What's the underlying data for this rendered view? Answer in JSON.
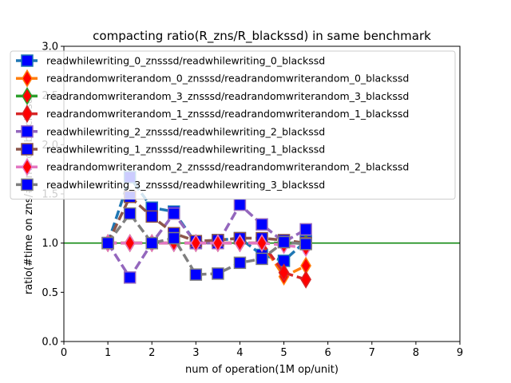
{
  "chart_data": {
    "type": "line",
    "title": "compacting ratio(R_zns/R_blackssd) in same benchmark",
    "xlabel": "num of operation(1M op/unit)",
    "ylabel": "ratio(#time on zns/#time on blackssd)",
    "xlim": [
      0,
      9
    ],
    "ylim": [
      0,
      3.0
    ],
    "xticks": [
      "0",
      "1",
      "2",
      "3",
      "4",
      "5",
      "6",
      "7",
      "8",
      "9"
    ],
    "yticks": [
      "0.0",
      "0.5",
      "1.0",
      "1.5",
      "2.0",
      "2.5",
      "3.0"
    ],
    "grid": false,
    "legend_position": "top-left",
    "reference_line": {
      "y": 1.0,
      "color": "#008000"
    },
    "series": [
      {
        "name": "readwhilewriting_0_znsssd/readwhilewriting_0_blackssd",
        "color": "#1f77b4",
        "marker": "square",
        "x": [
          1,
          1.5,
          2,
          2.5,
          3,
          3.5,
          4,
          4.5,
          5,
          5.5
        ],
        "y": [
          1.0,
          1.67,
          1.36,
          1.32,
          1.0,
          1.03,
          1.05,
          0.88,
          0.82,
          1.02
        ]
      },
      {
        "name": "readrandomwriterandom_0_znsssd/readrandomwriterandom_0_blackssd",
        "color": "#ff7f0e",
        "marker": "diamond",
        "x": [
          1,
          1.5,
          2,
          2.5,
          3,
          3.5,
          4,
          4.5,
          5,
          5.5
        ],
        "y": [
          1.0,
          1.0,
          1.0,
          1.0,
          1.0,
          1.0,
          1.0,
          1.0,
          0.66,
          0.77
        ]
      },
      {
        "name": "readrandomwriterandom_3_znsssd/readrandomwriterandom_3_blackssd",
        "color": "#2ca02c",
        "marker": "diamond",
        "x": [
          1,
          1.5,
          2,
          2.5,
          3,
          3.5,
          4,
          4.5,
          5,
          5.5
        ],
        "y": [
          1.0,
          1.0,
          1.0,
          1.0,
          1.0,
          1.0,
          1.0,
          1.0,
          1.0,
          1.0
        ]
      },
      {
        "name": "readrandomwriterandom_1_znsssd/readrandomwriterandom_1_blackssd",
        "color": "#d62728",
        "marker": "diamond",
        "x": [
          1,
          1.5,
          2,
          2.5,
          3,
          3.5,
          4,
          4.5,
          5,
          5.5
        ],
        "y": [
          1.0,
          1.0,
          1.0,
          1.0,
          1.0,
          1.0,
          1.0,
          1.0,
          0.7,
          0.63
        ]
      },
      {
        "name": "readwhilewriting_2_znsssd/readwhilewriting_2_blackssd",
        "color": "#9467bd",
        "marker": "square",
        "x": [
          1,
          1.5,
          2,
          2.5,
          3,
          3.5,
          4,
          4.5,
          5,
          5.5
        ],
        "y": [
          1.0,
          0.65,
          1.0,
          1.3,
          1.0,
          1.0,
          1.39,
          1.19,
          1.01,
          1.14
        ]
      },
      {
        "name": "readwhilewriting_1_znsssd/readwhilewriting_1_blackssd",
        "color": "#8c564b",
        "marker": "square",
        "x": [
          1,
          1.5,
          2,
          2.5,
          3,
          3.5,
          4,
          4.5,
          5,
          5.5
        ],
        "y": [
          1.0,
          1.47,
          1.27,
          1.1,
          1.02,
          1.03,
          1.05,
          1.05,
          1.03,
          1.0
        ]
      },
      {
        "name": "readrandomwriterandom_2_znsssd/readrandomwriterandom_2_blackssd",
        "color": "#e377c2",
        "marker": "diamond",
        "x": [
          1,
          1.5,
          2,
          2.5,
          3,
          3.5,
          4,
          4.5,
          5,
          5.5
        ],
        "y": [
          1.0,
          1.0,
          1.0,
          1.0,
          1.0,
          1.0,
          1.0,
          1.0,
          0.98,
          0.95
        ]
      },
      {
        "name": "readwhilewriting_3_znsssd/readwhilewriting_3_blackssd",
        "color": "#7f7f7f",
        "marker": "square",
        "x": [
          1,
          1.5,
          2,
          2.5,
          3,
          3.5,
          4,
          4.5,
          5,
          5.5
        ],
        "y": [
          1.0,
          1.3,
          1.0,
          1.05,
          0.68,
          0.69,
          0.8,
          0.84,
          1.01,
          0.99
        ]
      }
    ]
  }
}
